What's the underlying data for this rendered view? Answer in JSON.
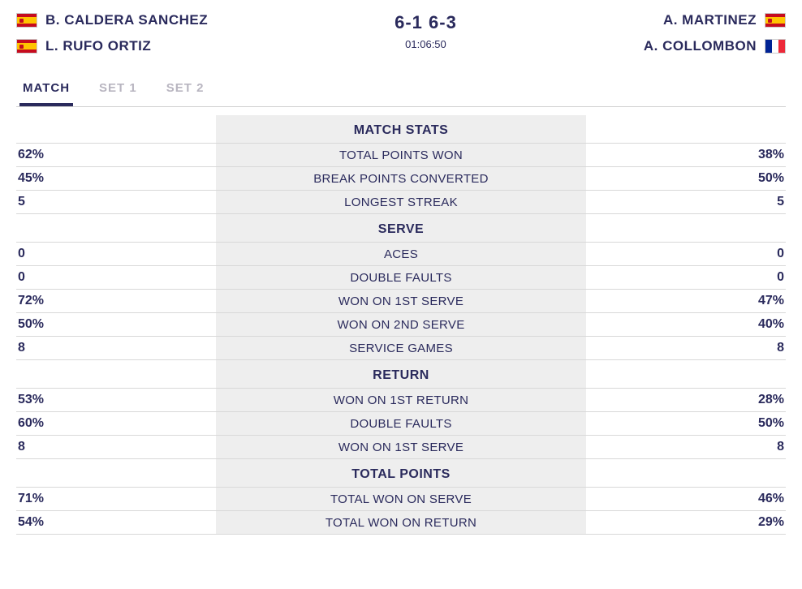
{
  "colors": {
    "text": "#2a2a5c",
    "tab_inactive": "#b8b5c0",
    "center_bg": "#eeeeee",
    "row_border": "#d8d8d8",
    "tabs_border": "#d0d0d0"
  },
  "header": {
    "score": "6-1 6-3",
    "duration": "01:06:50",
    "team_left": [
      {
        "name": "B. CALDERA SANCHEZ",
        "flag": "es"
      },
      {
        "name": "L. RUFO ORTIZ",
        "flag": "es"
      }
    ],
    "team_right": [
      {
        "name": "A. MARTINEZ",
        "flag": "es"
      },
      {
        "name": "A. COLLOMBON",
        "flag": "fr"
      }
    ]
  },
  "tabs": [
    {
      "label": "MATCH",
      "active": true
    },
    {
      "label": "SET 1",
      "active": false
    },
    {
      "label": "SET 2",
      "active": false
    }
  ],
  "sections": [
    {
      "title": "MATCH STATS",
      "rows": [
        {
          "left": "62%",
          "label": "TOTAL POINTS WON",
          "right": "38%"
        },
        {
          "left": "45%",
          "label": "BREAK POINTS CONVERTED",
          "right": "50%"
        },
        {
          "left": "5",
          "label": "LONGEST STREAK",
          "right": "5"
        }
      ]
    },
    {
      "title": "SERVE",
      "rows": [
        {
          "left": "0",
          "label": "ACES",
          "right": "0"
        },
        {
          "left": "0",
          "label": "DOUBLE FAULTS",
          "right": "0"
        },
        {
          "left": "72%",
          "label": "WON ON 1ST SERVE",
          "right": "47%"
        },
        {
          "left": "50%",
          "label": "WON ON 2ND SERVE",
          "right": "40%"
        },
        {
          "left": "8",
          "label": "SERVICE GAMES",
          "right": "8"
        }
      ]
    },
    {
      "title": "RETURN",
      "rows": [
        {
          "left": "53%",
          "label": "WON ON 1ST RETURN",
          "right": "28%"
        },
        {
          "left": "60%",
          "label": "DOUBLE FAULTS",
          "right": "50%"
        },
        {
          "left": "8",
          "label": "WON ON 1ST SERVE",
          "right": "8"
        }
      ]
    },
    {
      "title": "TOTAL POINTS",
      "rows": [
        {
          "left": "71%",
          "label": "TOTAL WON ON SERVE",
          "right": "46%"
        },
        {
          "left": "54%",
          "label": "TOTAL WON ON RETURN",
          "right": "29%"
        }
      ]
    }
  ]
}
